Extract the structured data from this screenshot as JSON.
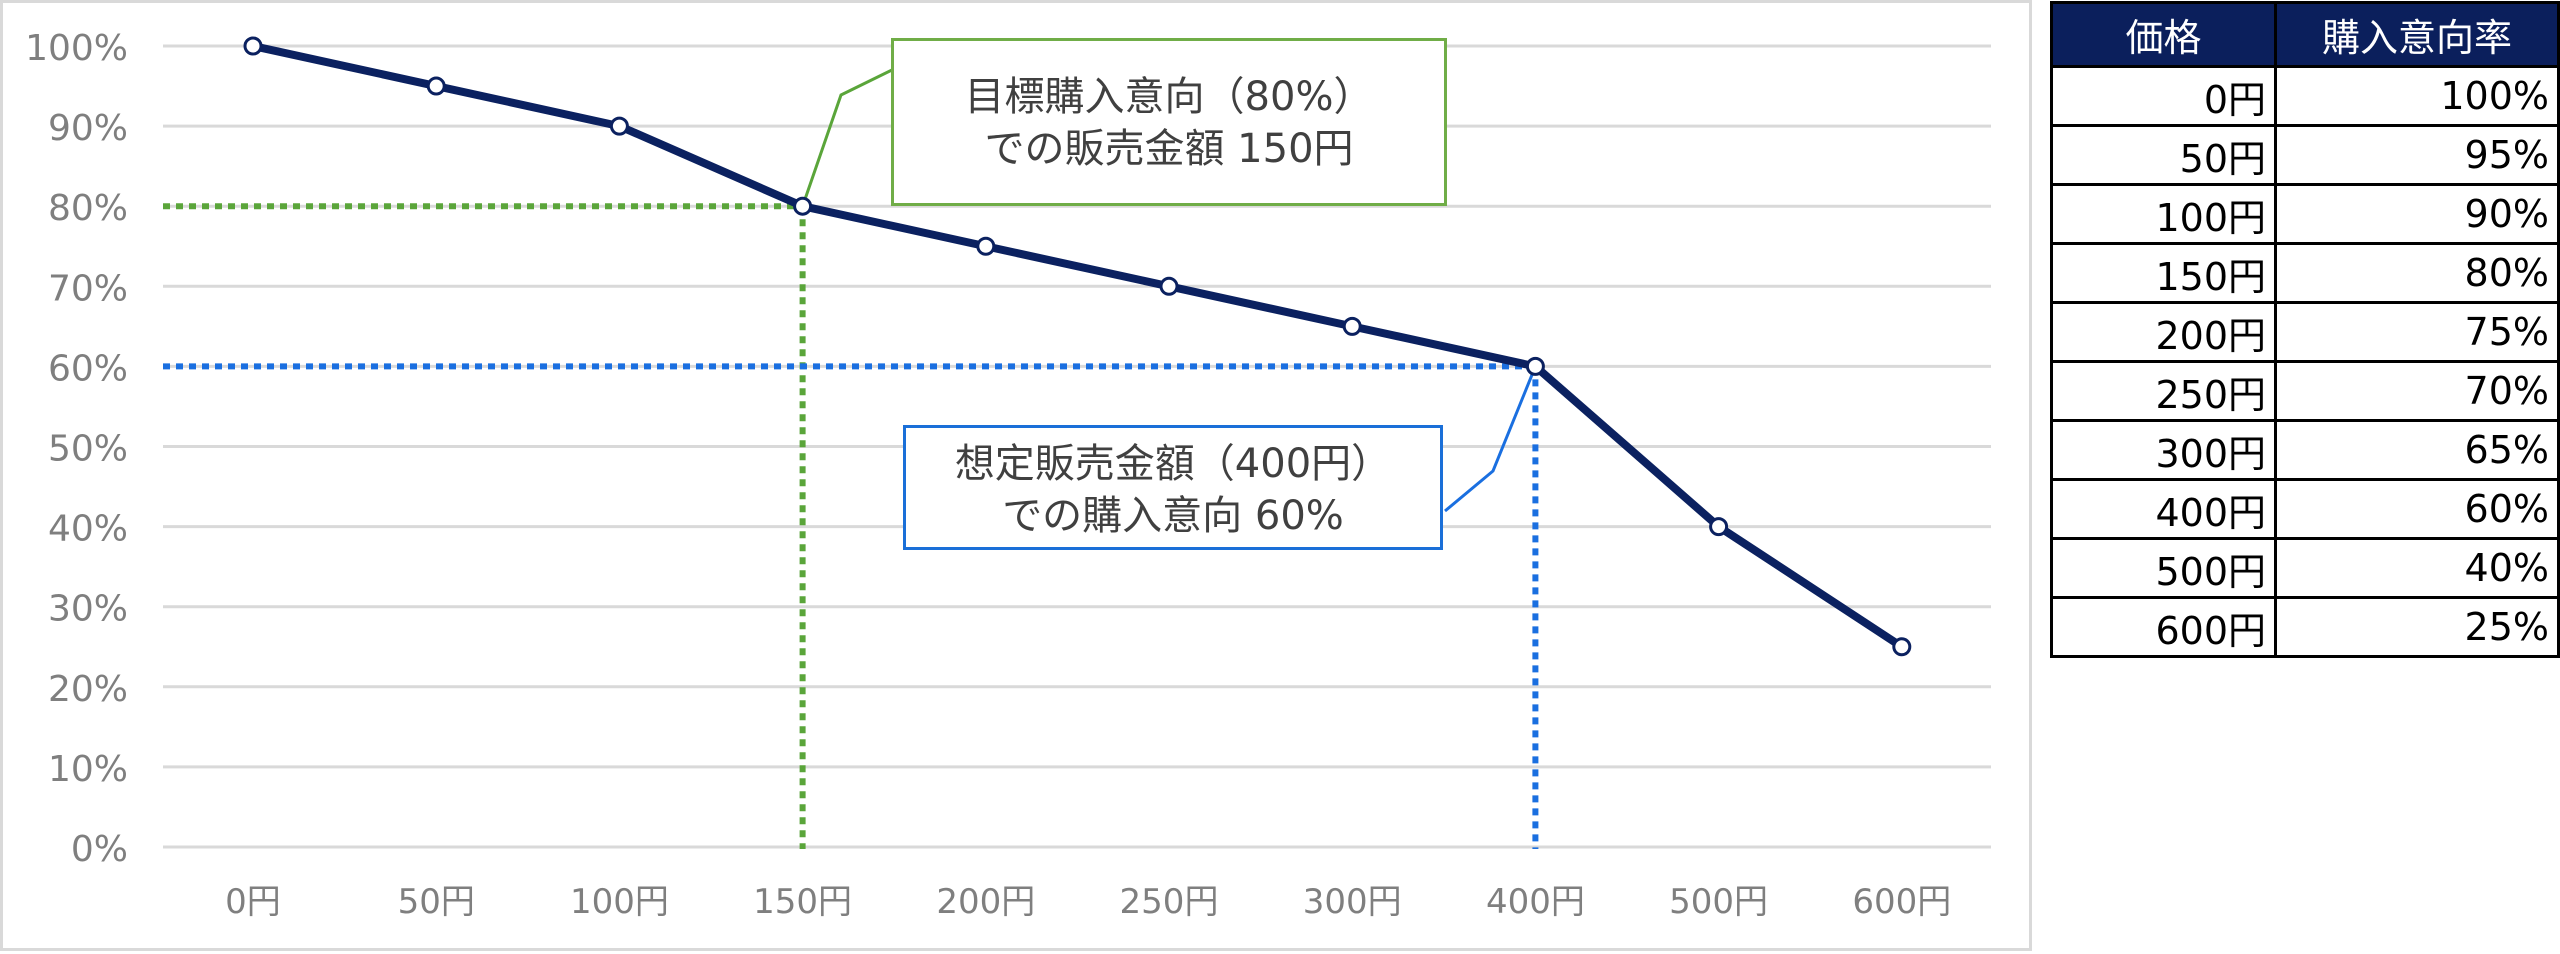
{
  "colors": {
    "series_line": "#0b2160",
    "green_guide": "#5aa53a",
    "blue_guide": "#1a6fe0",
    "grid": "#d9d9d9",
    "axis_text": "#7f7f7f",
    "table_header_bg": "#0b1f5c",
    "table_header_text": "#ffffff"
  },
  "chart_data": {
    "type": "line",
    "title": "",
    "xlabel": "",
    "ylabel": "",
    "categories": [
      "0円",
      "50円",
      "100円",
      "150円",
      "200円",
      "250円",
      "300円",
      "400円",
      "500円",
      "600円"
    ],
    "series": [
      {
        "values": [
          100,
          95,
          90,
          80,
          75,
          70,
          65,
          60,
          40,
          25
        ]
      }
    ],
    "ylim": [
      0,
      100
    ],
    "yticks": [
      "0%",
      "10%",
      "20%",
      "30%",
      "40%",
      "50%",
      "60%",
      "70%",
      "80%",
      "90%",
      "100%"
    ],
    "grid": true,
    "legend": "none",
    "guides": [
      {
        "category_index": 3,
        "value": 80,
        "color": "green"
      },
      {
        "category_index": 7,
        "value": 60,
        "color": "blue"
      }
    ]
  },
  "callouts": {
    "green": {
      "line1": "目標購入意向（80%）",
      "line2": "での販売金額 150円"
    },
    "blue": {
      "line1": "想定販売金額（400円）",
      "line2": "での購入意向 60%"
    }
  },
  "table": {
    "headers": [
      "価格",
      "購入意向率"
    ],
    "rows": [
      [
        "0円",
        "100%"
      ],
      [
        "50円",
        "95%"
      ],
      [
        "100円",
        "90%"
      ],
      [
        "150円",
        "80%"
      ],
      [
        "200円",
        "75%"
      ],
      [
        "250円",
        "70%"
      ],
      [
        "300円",
        "65%"
      ],
      [
        "400円",
        "60%"
      ],
      [
        "500円",
        "40%"
      ],
      [
        "600円",
        "25%"
      ]
    ]
  }
}
